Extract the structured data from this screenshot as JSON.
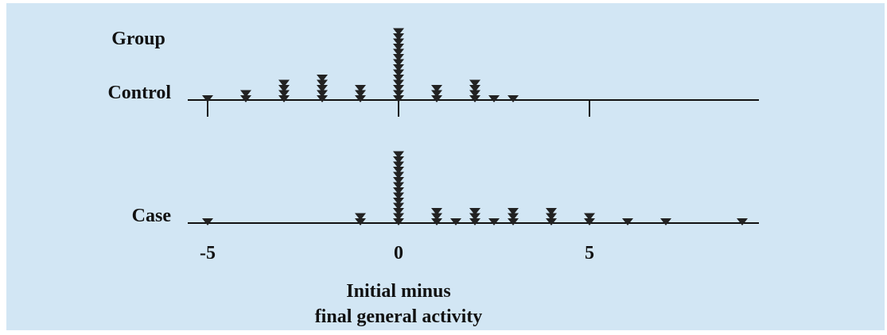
{
  "chart_data": {
    "type": "dot_strip",
    "title": "",
    "group_label": "Group",
    "xlabel_line1": "Initial minus",
    "xlabel_line2": "final general activity",
    "xlim": [
      -5.2,
      9.6
    ],
    "xticks": [
      -5,
      0,
      5
    ],
    "xtick_labels": [
      "-5",
      "0",
      "5"
    ],
    "groups": [
      {
        "name": "Control",
        "points": [
          {
            "x": -5,
            "count": 1
          },
          {
            "x": -4,
            "count": 2
          },
          {
            "x": -3,
            "count": 4
          },
          {
            "x": -2,
            "count": 5
          },
          {
            "x": -1,
            "count": 3
          },
          {
            "x": 0,
            "count": 14
          },
          {
            "x": 1,
            "count": 3
          },
          {
            "x": 2,
            "count": 4
          },
          {
            "x": 2.5,
            "count": 1
          },
          {
            "x": 3,
            "count": 1
          }
        ]
      },
      {
        "name": "Case",
        "points": [
          {
            "x": -5,
            "count": 1
          },
          {
            "x": -1,
            "count": 2
          },
          {
            "x": 0,
            "count": 14
          },
          {
            "x": 1,
            "count": 3
          },
          {
            "x": 1.5,
            "count": 1
          },
          {
            "x": 2,
            "count": 3
          },
          {
            "x": 2.5,
            "count": 1
          },
          {
            "x": 3,
            "count": 3
          },
          {
            "x": 4,
            "count": 3
          },
          {
            "x": 5,
            "count": 2
          },
          {
            "x": 6,
            "count": 1
          },
          {
            "x": 7,
            "count": 1
          },
          {
            "x": 9,
            "count": 1
          }
        ]
      }
    ],
    "marker": "downward-triangle",
    "marker_color": "#222222",
    "background_color": "#d2e6f4"
  }
}
